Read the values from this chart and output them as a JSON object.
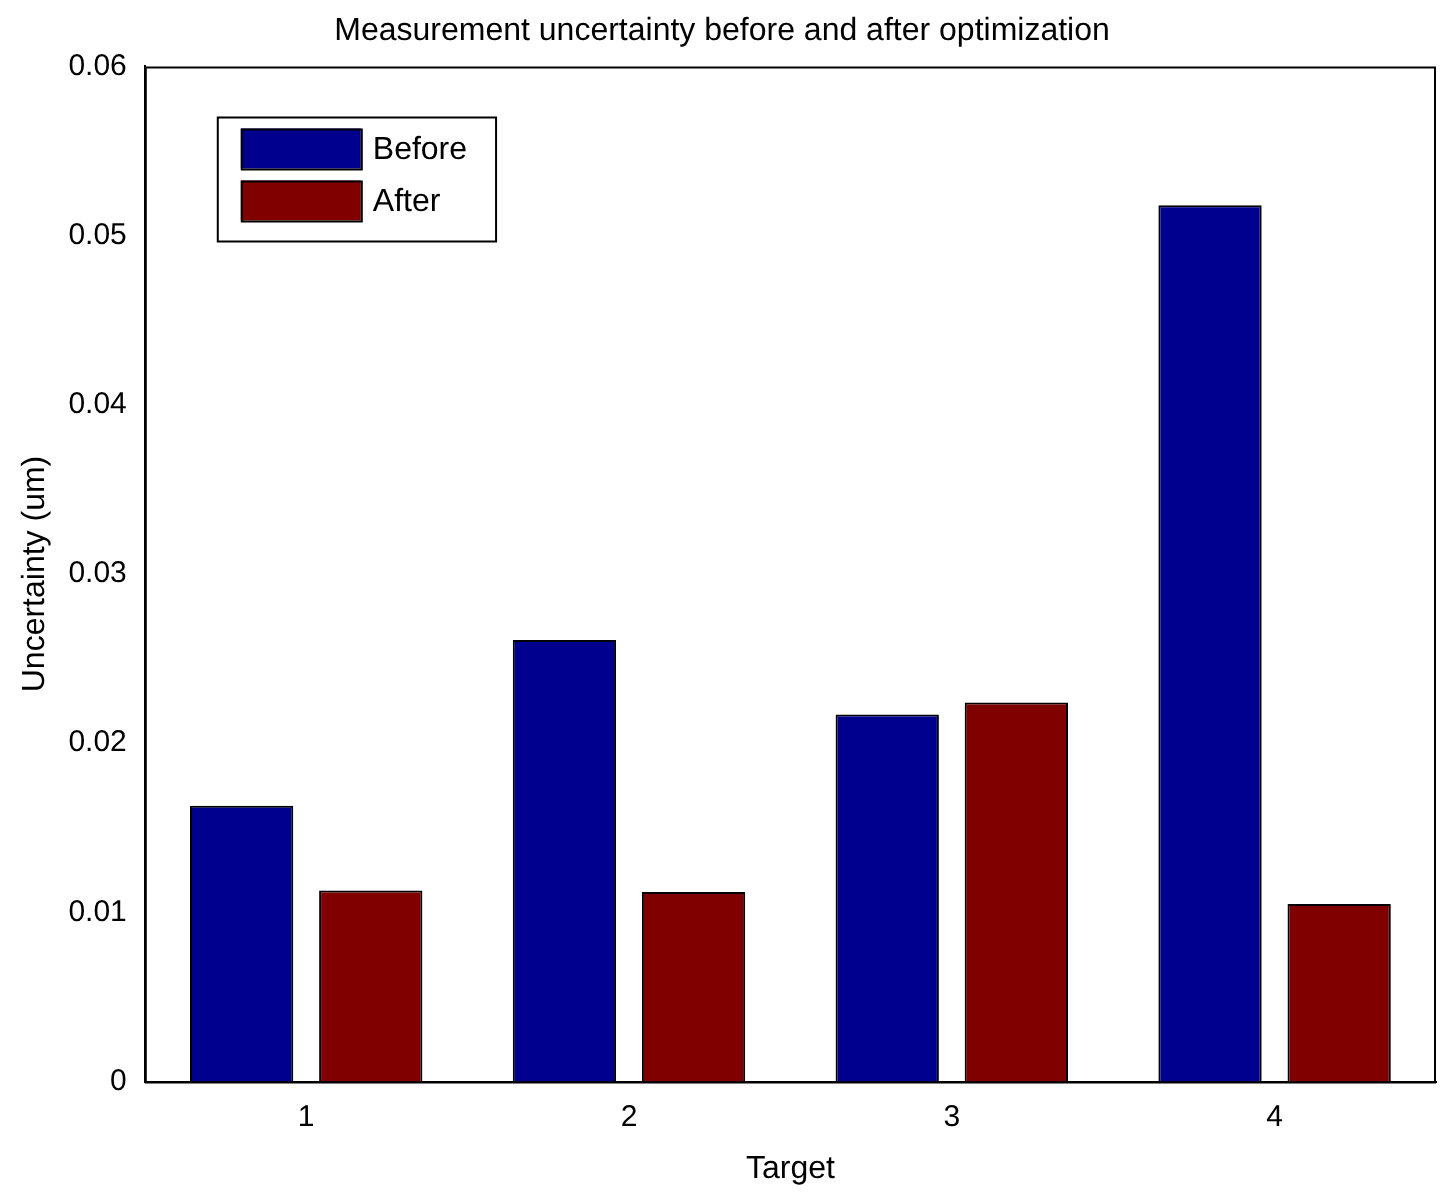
{
  "chart_data": {
    "type": "bar",
    "title": "Measurement uncertainty before and after optimization",
    "xlabel": "Target",
    "ylabel": "Uncertainty (um)",
    "categories": [
      "1",
      "2",
      "3",
      "4"
    ],
    "series": [
      {
        "name": "Before",
        "color": "#00008f",
        "values": [
          0.0163,
          0.0261,
          0.0217,
          0.0518
        ]
      },
      {
        "name": "After",
        "color": "#800000",
        "values": [
          0.0113,
          0.0112,
          0.0224,
          0.0105
        ]
      }
    ],
    "ylim": [
      0,
      0.06
    ],
    "yticks": [
      0,
      0.01,
      0.02,
      0.03,
      0.04,
      0.05,
      0.06
    ],
    "grid": false,
    "legend": "top left"
  }
}
